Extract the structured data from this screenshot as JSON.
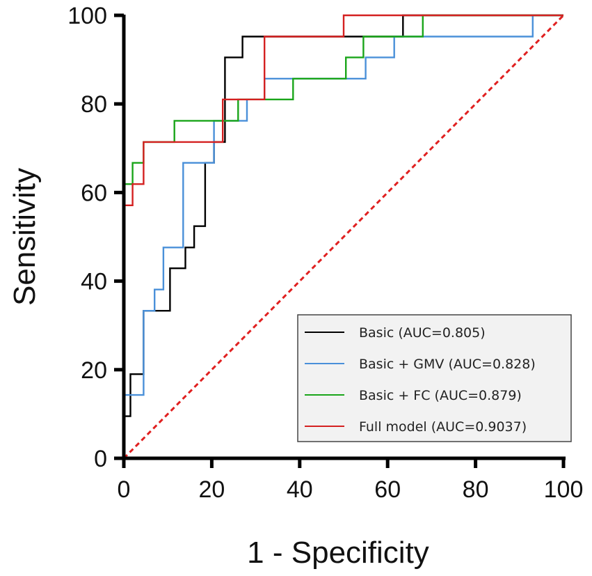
{
  "chart_data": {
    "type": "line",
    "title": "",
    "xlabel": "1 - Specificity",
    "ylabel": "Sensitivity",
    "xlim": [
      0,
      100
    ],
    "ylim": [
      0,
      100
    ],
    "xticks": [
      "0",
      "20",
      "40",
      "60",
      "80",
      "100"
    ],
    "yticks": [
      "0",
      "20",
      "40",
      "60",
      "80",
      "100"
    ],
    "legend_position": "bottom-right",
    "series": [
      {
        "name": "Basic (AUC=0.805)",
        "color": "#000000",
        "x": [
          0,
          0,
          1.5,
          1.5,
          4.5,
          4.5,
          10.5,
          10.5,
          14,
          14,
          16,
          16,
          18.5,
          18.5,
          20.5,
          20.5,
          23,
          23,
          27,
          27,
          28.5,
          28.5,
          29.5,
          29.5,
          55,
          55,
          63.5,
          63.5,
          67.5,
          67.5,
          100
        ],
        "y": [
          0,
          9.5,
          9.5,
          19,
          19,
          33.3,
          33.3,
          42.9,
          42.9,
          47.6,
          47.6,
          52.4,
          52.4,
          66.7,
          66.7,
          71.4,
          71.4,
          90.5,
          90.5,
          95.2,
          95.2,
          95.2,
          95.2,
          95.2,
          95.2,
          95.2,
          95.2,
          100,
          100,
          100,
          100
        ]
      },
      {
        "name": "Basic + GMV (AUC=0.828)",
        "color": "#4a90d9",
        "x": [
          0,
          0,
          2,
          2,
          4.5,
          4.5,
          7,
          7,
          9,
          9,
          13.5,
          13.5,
          20.5,
          20.5,
          25,
          25,
          28,
          28,
          32,
          32,
          55,
          55,
          61.5,
          61.5,
          93,
          93,
          100
        ],
        "y": [
          0,
          14.3,
          14.3,
          14.3,
          14.3,
          33.3,
          33.3,
          38.1,
          38.1,
          47.6,
          47.6,
          66.7,
          66.7,
          76.2,
          76.2,
          76.2,
          76.2,
          81,
          81,
          85.7,
          85.7,
          90.5,
          90.5,
          95.2,
          95.2,
          100,
          100
        ]
      },
      {
        "name": "Basic + FC (AUC=0.879)",
        "color": "#1aa51a",
        "x": [
          0,
          0,
          2,
          2,
          4.5,
          4.5,
          11.5,
          11.5,
          25,
          25,
          26,
          26,
          38.5,
          38.5,
          50.5,
          50.5,
          54.5,
          54.5,
          68,
          68,
          100
        ],
        "y": [
          0,
          61.9,
          61.9,
          66.7,
          66.7,
          71.4,
          71.4,
          76.2,
          76.2,
          76.2,
          76.2,
          81,
          81,
          85.7,
          85.7,
          90.5,
          90.5,
          95.2,
          95.2,
          100,
          100
        ]
      },
      {
        "name": "Full model (AUC=0.9037)",
        "color": "#d42020",
        "x": [
          0,
          0,
          2,
          2,
          4.5,
          4.5,
          11.5,
          11.5,
          22.5,
          22.5,
          27,
          27,
          32,
          32,
          50,
          50,
          100
        ],
        "y": [
          0,
          57.1,
          57.1,
          61.9,
          61.9,
          71.4,
          71.4,
          71.4,
          71.4,
          81,
          81,
          81,
          81,
          95.2,
          95.2,
          100,
          100
        ]
      }
    ],
    "reference_line": {
      "name": "chance",
      "color": "#e02020",
      "x": [
        0,
        100
      ],
      "y": [
        0,
        100
      ],
      "style": "dashed"
    }
  }
}
